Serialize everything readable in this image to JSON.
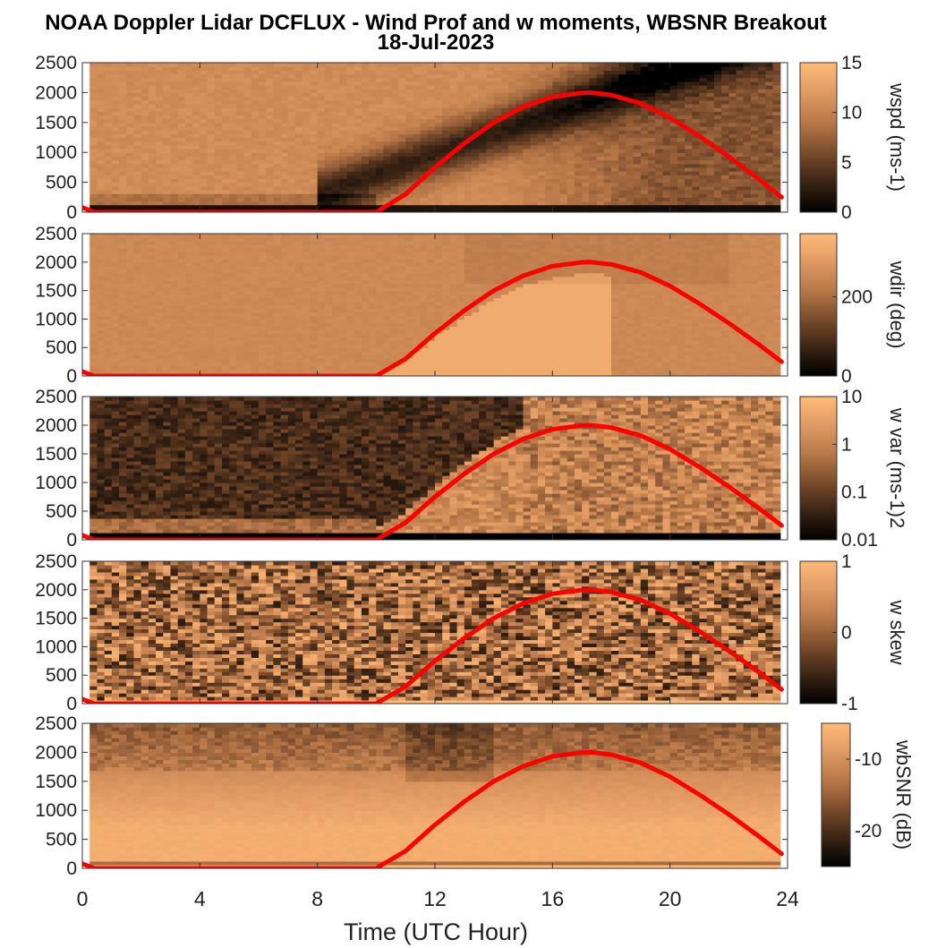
{
  "figure": {
    "title_line1": "NOAA Doppler Lidar DCFLUX - Wind Prof and w moments, WBSNR Breakout",
    "title_line2": "18-Jul-2023",
    "xlabel": "Time (UTC Hour)"
  },
  "colors": {
    "overlay": "#ff0000",
    "colormap": [
      "#000000",
      "#3a2414",
      "#7a4c2c",
      "#b87848",
      "#e09a63",
      "#ffbb78"
    ]
  },
  "chart_data": [
    {
      "type": "heatmap",
      "name": "wspd",
      "ylabel": "",
      "ylim": [
        0,
        2500
      ],
      "yticks": [
        "0",
        "500",
        "1000",
        "1500",
        "2000",
        "2500"
      ],
      "colorbar_label": "wspd (ms-1)",
      "colorbar_ticks": [
        "0",
        "5",
        "10",
        "15"
      ],
      "colorbar_values": [
        0,
        5,
        10,
        15
      ]
    },
    {
      "type": "heatmap",
      "name": "wdir",
      "ylabel": "",
      "ylim": [
        0,
        2500
      ],
      "yticks": [
        "0",
        "500",
        "1000",
        "1500",
        "2000",
        "2500"
      ],
      "colorbar_label": "wdir (deg)",
      "colorbar_ticks": [
        "0",
        "200"
      ],
      "colorbar_values": [
        0,
        200
      ]
    },
    {
      "type": "heatmap",
      "name": "w var",
      "ylabel": "",
      "ylim": [
        0,
        2500
      ],
      "yticks": [
        "0",
        "500",
        "1000",
        "1500",
        "2000",
        "2500"
      ],
      "colorbar_label": "w var (ms-1)2",
      "colorbar_ticks": [
        "0.01",
        "0.1",
        "1",
        "10"
      ],
      "colorbar_scale": "log"
    },
    {
      "type": "heatmap",
      "name": "w skew",
      "ylabel": "",
      "ylim": [
        0,
        2500
      ],
      "yticks": [
        "0",
        "500",
        "1000",
        "1500",
        "2000",
        "2500"
      ],
      "colorbar_label": "w skew",
      "colorbar_ticks": [
        "-1",
        "0",
        "1"
      ],
      "colorbar_values": [
        -1,
        0,
        1
      ]
    },
    {
      "type": "heatmap",
      "name": "wbSNR",
      "ylabel": "",
      "ylim": [
        0,
        2500
      ],
      "yticks": [
        "0",
        "500",
        "1000",
        "1500",
        "2000",
        "2500"
      ],
      "colorbar_label": "wbSNR (dB)",
      "colorbar_ticks": [
        "-20",
        "-10"
      ],
      "colorbar_values": [
        -20,
        -10
      ]
    }
  ],
  "x_axis": {
    "xlim": [
      0,
      24
    ],
    "ticks": [
      "0",
      "4",
      "8",
      "12",
      "16",
      "20",
      "24"
    ],
    "tick_values": [
      0,
      4,
      8,
      12,
      16,
      20,
      24
    ]
  },
  "overlay_line": {
    "x": [
      0,
      0.4,
      10,
      11,
      12,
      13,
      14,
      15,
      16,
      17,
      17.3,
      18,
      19,
      20,
      21,
      22,
      23,
      23.8
    ],
    "y": [
      80,
      0,
      0,
      300,
      750,
      1150,
      1500,
      1760,
      1930,
      1995,
      2000,
      1960,
      1820,
      1580,
      1270,
      930,
      560,
      250
    ]
  }
}
